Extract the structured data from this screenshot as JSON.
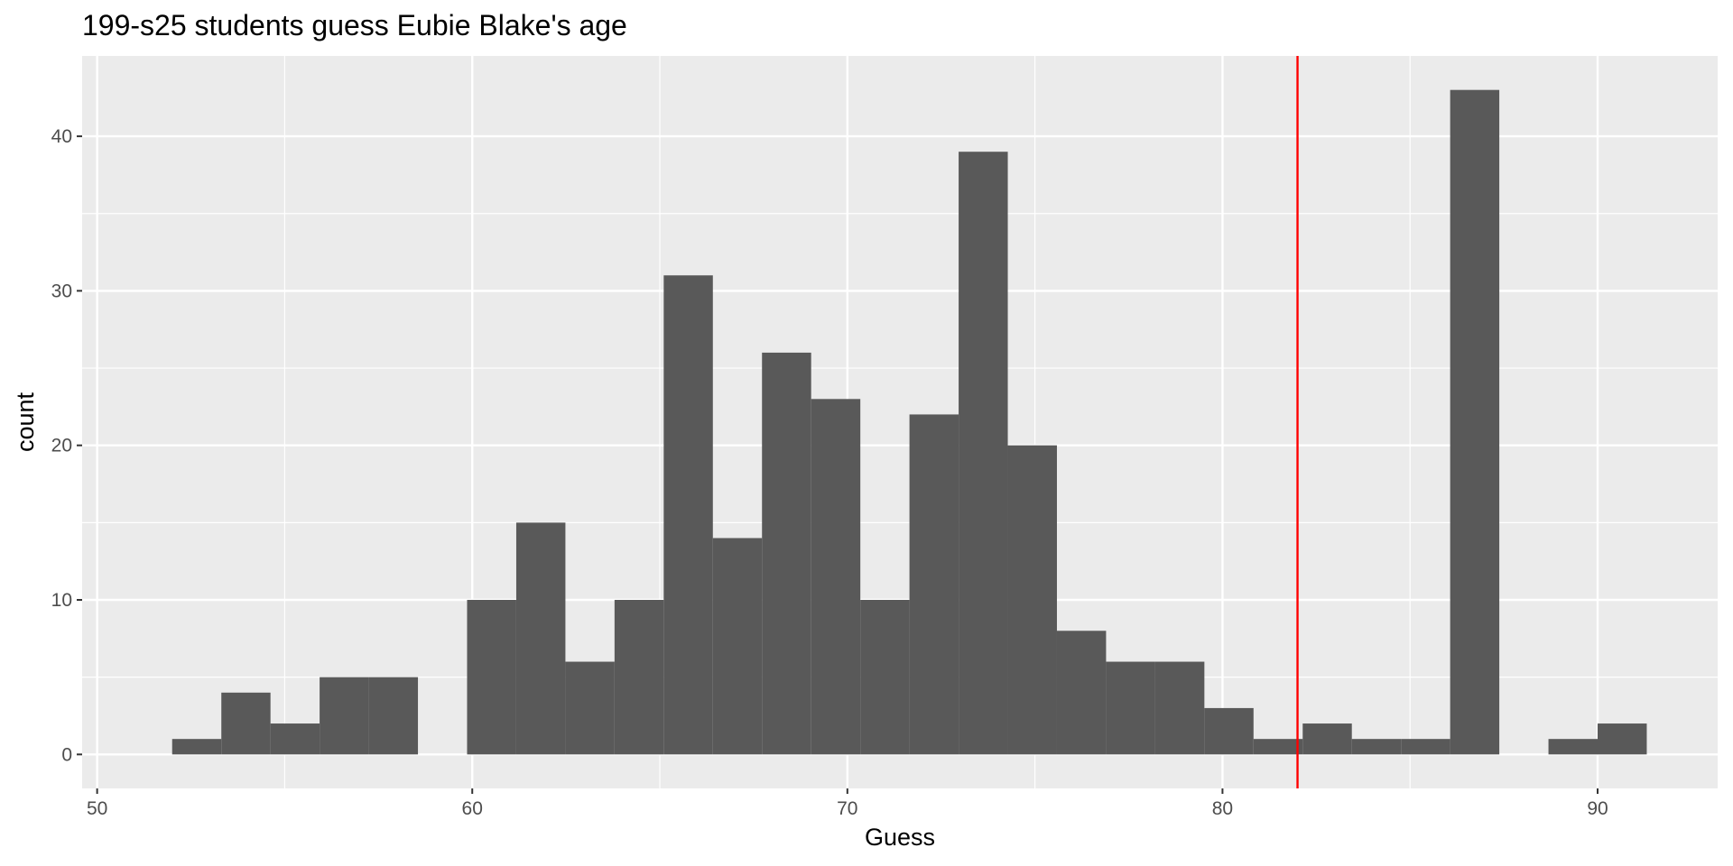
{
  "chart_data": {
    "type": "bar",
    "title": "199-s25 students guess Eubie Blake's age",
    "xlabel": "Guess",
    "ylabel": "count",
    "xlim": [
      49.6,
      93.2
    ],
    "ylim": [
      -2.2,
      45.2
    ],
    "x_ticks": [
      50,
      60,
      70,
      80,
      90
    ],
    "x_tick_labels": [
      "50",
      "60",
      "70",
      "80",
      "90"
    ],
    "y_ticks": [
      0,
      10,
      20,
      30,
      40
    ],
    "y_tick_labels": [
      "0",
      "10",
      "20",
      "30",
      "40"
    ],
    "bin_width": 1.3103,
    "bin_centers": [
      52.655,
      53.966,
      55.276,
      56.586,
      57.897,
      59.207,
      60.517,
      61.828,
      63.138,
      64.448,
      65.759,
      67.069,
      68.379,
      69.69,
      71.0,
      72.31,
      73.621,
      74.931,
      76.241,
      77.552,
      78.862,
      80.172,
      81.483,
      82.793,
      84.103,
      85.414,
      86.724,
      88.034,
      89.345,
      90.655
    ],
    "counts": [
      1,
      4,
      2,
      5,
      5,
      0,
      10,
      15,
      6,
      10,
      31,
      14,
      26,
      23,
      10,
      22,
      39,
      20,
      8,
      6,
      6,
      3,
      1,
      2,
      1,
      1,
      43,
      0,
      1,
      2
    ],
    "vline": {
      "x": 82,
      "color": "#ff0000"
    },
    "bar_color": "#595959",
    "panel_bg": "#ebebeb",
    "grid": true
  }
}
